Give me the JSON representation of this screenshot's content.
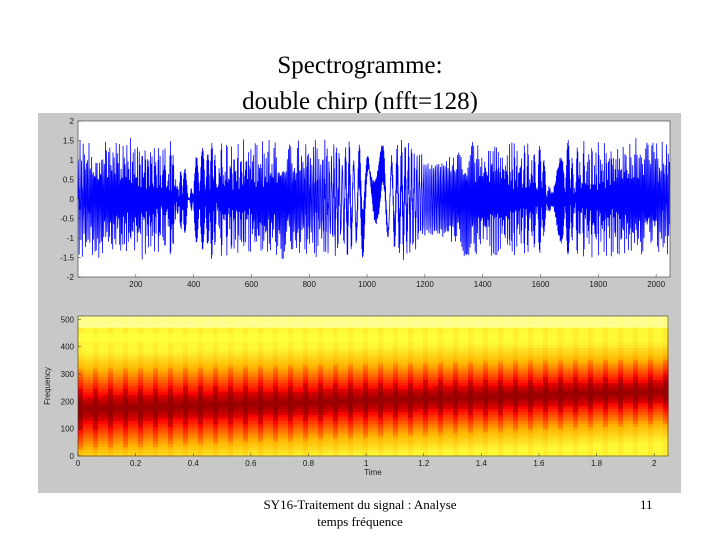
{
  "slide": {
    "title_line1": "Spectrogramme:",
    "title_line2": "double chirp (nfft=128)",
    "footer_line1": "SY16-Traitement du signal : Analyse",
    "footer_line2": "temps fréquence",
    "page_number": "11"
  },
  "chart_data": [
    {
      "type": "line",
      "title": "",
      "xlabel": "",
      "ylabel": "",
      "xlim": [
        0,
        2048
      ],
      "ylim": [
        -2,
        2
      ],
      "x_ticks": [
        "200",
        "400",
        "600",
        "800",
        "1000",
        "1200",
        "1400",
        "1600",
        "1800",
        "2000"
      ],
      "y_ticks": [
        "-2",
        "-1.5",
        "-1",
        "-0.5",
        "0",
        "0.5",
        "1",
        "1.5",
        "2"
      ],
      "series_color": "#0000ff",
      "description": "double chirp signal, amplitude between about -1.8 and 1.8"
    },
    {
      "type": "heatmap",
      "title": "",
      "xlabel": "Time",
      "ylabel": "Frequency",
      "xlim": [
        0,
        2.048
      ],
      "ylim": [
        0,
        512
      ],
      "x_ticks": [
        "0",
        "0.2",
        "0.4",
        "0.6",
        "0.8",
        "1",
        "1.2",
        "1.4",
        "1.6",
        "1.8",
        "2"
      ],
      "y_ticks": [
        "0",
        "100",
        "200",
        "300",
        "400",
        "500"
      ],
      "colormap": "hot",
      "hot_band": {
        "start_low": 30,
        "start_high": 310,
        "end_low": 120,
        "end_high": 350
      }
    }
  ]
}
